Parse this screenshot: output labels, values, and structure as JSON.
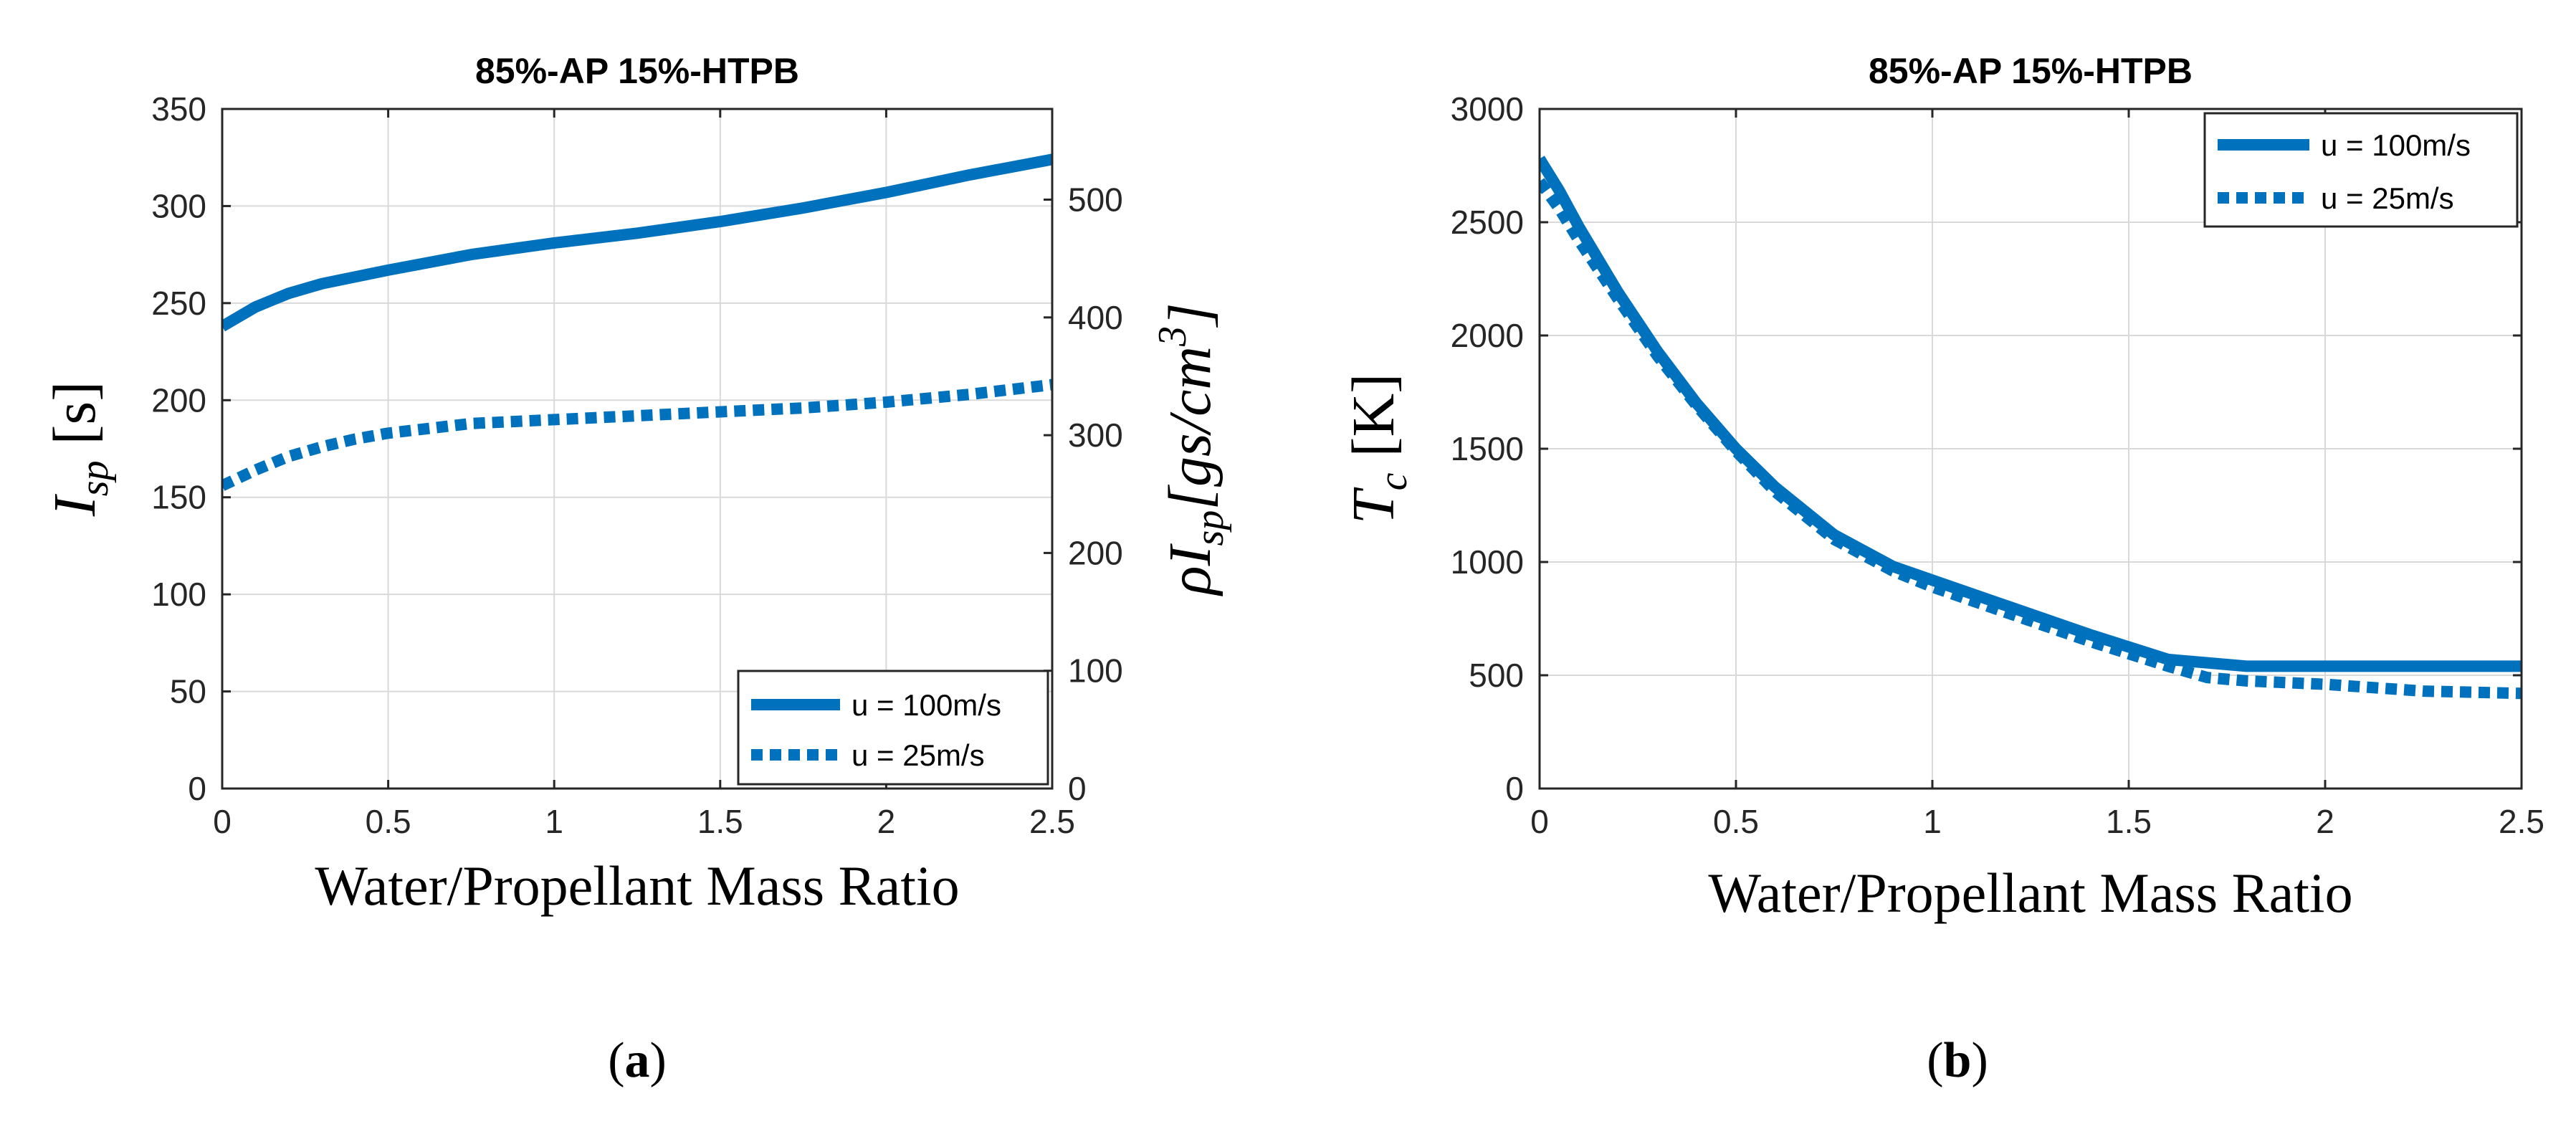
{
  "colors": {
    "series": "#0072BD",
    "grid": "#d9d9d9",
    "axis": "#262626"
  },
  "chart_data": [
    {
      "type": "line",
      "panel": "a",
      "caption_letter": "a",
      "title": "85%-AP 15%-HTPB",
      "xlabel": "Water/Propellant Mass Ratio",
      "ylabel": {
        "base": "I",
        "sub": "sp",
        "unit": "[s]"
      },
      "ylabel_right": {
        "text": "ρI",
        "sub": "sp",
        "unit": "[gs/cm",
        "sup": "3",
        "close": "]"
      },
      "xlim": [
        0,
        2.5
      ],
      "ylim": [
        0,
        350
      ],
      "ylim_right": [
        0,
        577
      ],
      "xticks": [
        "0",
        "0.5",
        "1",
        "1.5",
        "2",
        "2.5"
      ],
      "xtick_values": [
        0,
        0.5,
        1,
        1.5,
        2,
        2.5
      ],
      "yticks": [
        "0",
        "50",
        "100",
        "150",
        "200",
        "250",
        "300",
        "350"
      ],
      "ytick_values": [
        0,
        50,
        100,
        150,
        200,
        250,
        300,
        350
      ],
      "yticks_right": [
        "0",
        "100",
        "200",
        "300",
        "400",
        "500"
      ],
      "ytick_right_values": [
        0,
        100,
        200,
        300,
        400,
        500
      ],
      "grid": true,
      "legend_position": "bottom-right",
      "series": [
        {
          "name": "u = 100m/s",
          "style": "solid",
          "x": [
            0,
            0.1,
            0.2,
            0.3,
            0.5,
            0.75,
            1,
            1.25,
            1.5,
            1.75,
            2,
            2.25,
            2.5
          ],
          "y": [
            238,
            248,
            255,
            260,
            267,
            275,
            281,
            286,
            292,
            299,
            307,
            316,
            324
          ]
        },
        {
          "name": "u = 25m/s",
          "style": "dotted",
          "x": [
            0,
            0.1,
            0.2,
            0.3,
            0.4,
            0.5,
            0.6,
            0.75,
            1,
            1.25,
            1.5,
            1.75,
            2,
            2.25,
            2.5
          ],
          "y": [
            156,
            164,
            171,
            176,
            180,
            183,
            185,
            188,
            190,
            192,
            194,
            196,
            199,
            203,
            208
          ]
        }
      ]
    },
    {
      "type": "line",
      "panel": "b",
      "caption_letter": "b",
      "title": "85%-AP 15%-HTPB",
      "xlabel": "Water/Propellant Mass Ratio",
      "ylabel": {
        "base": "T",
        "sub": "c",
        "unit": "[K]"
      },
      "xlim": [
        0,
        2.5
      ],
      "ylim": [
        0,
        3000
      ],
      "xticks": [
        "0",
        "0.5",
        "1",
        "1.5",
        "2",
        "2.5"
      ],
      "xtick_values": [
        0,
        0.5,
        1,
        1.5,
        2,
        2.5
      ],
      "yticks": [
        "0",
        "500",
        "1000",
        "1500",
        "2000",
        "2500",
        "3000"
      ],
      "ytick_values": [
        0,
        500,
        1000,
        1500,
        2000,
        2500,
        3000
      ],
      "grid": true,
      "legend_position": "top-right",
      "series": [
        {
          "name": "u = 100m/s",
          "style": "solid",
          "x": [
            0,
            0.05,
            0.1,
            0.2,
            0.3,
            0.4,
            0.5,
            0.6,
            0.75,
            0.9,
            1,
            1.2,
            1.4,
            1.6,
            1.8,
            2,
            2.25,
            2.5
          ],
          "y": [
            2780,
            2640,
            2480,
            2190,
            1930,
            1700,
            1500,
            1330,
            1120,
            980,
            920,
            800,
            680,
            570,
            540,
            540,
            540,
            540
          ]
        },
        {
          "name": "u = 25m/s",
          "style": "dotted",
          "x": [
            0,
            0.05,
            0.1,
            0.2,
            0.3,
            0.4,
            0.5,
            0.6,
            0.75,
            0.9,
            1,
            1.2,
            1.4,
            1.6,
            1.7,
            1.8,
            2,
            2.25,
            2.5
          ],
          "y": [
            2680,
            2560,
            2420,
            2160,
            1910,
            1690,
            1490,
            1310,
            1100,
            960,
            890,
            770,
            650,
            540,
            490,
            475,
            460,
            430,
            420
          ]
        }
      ]
    }
  ]
}
